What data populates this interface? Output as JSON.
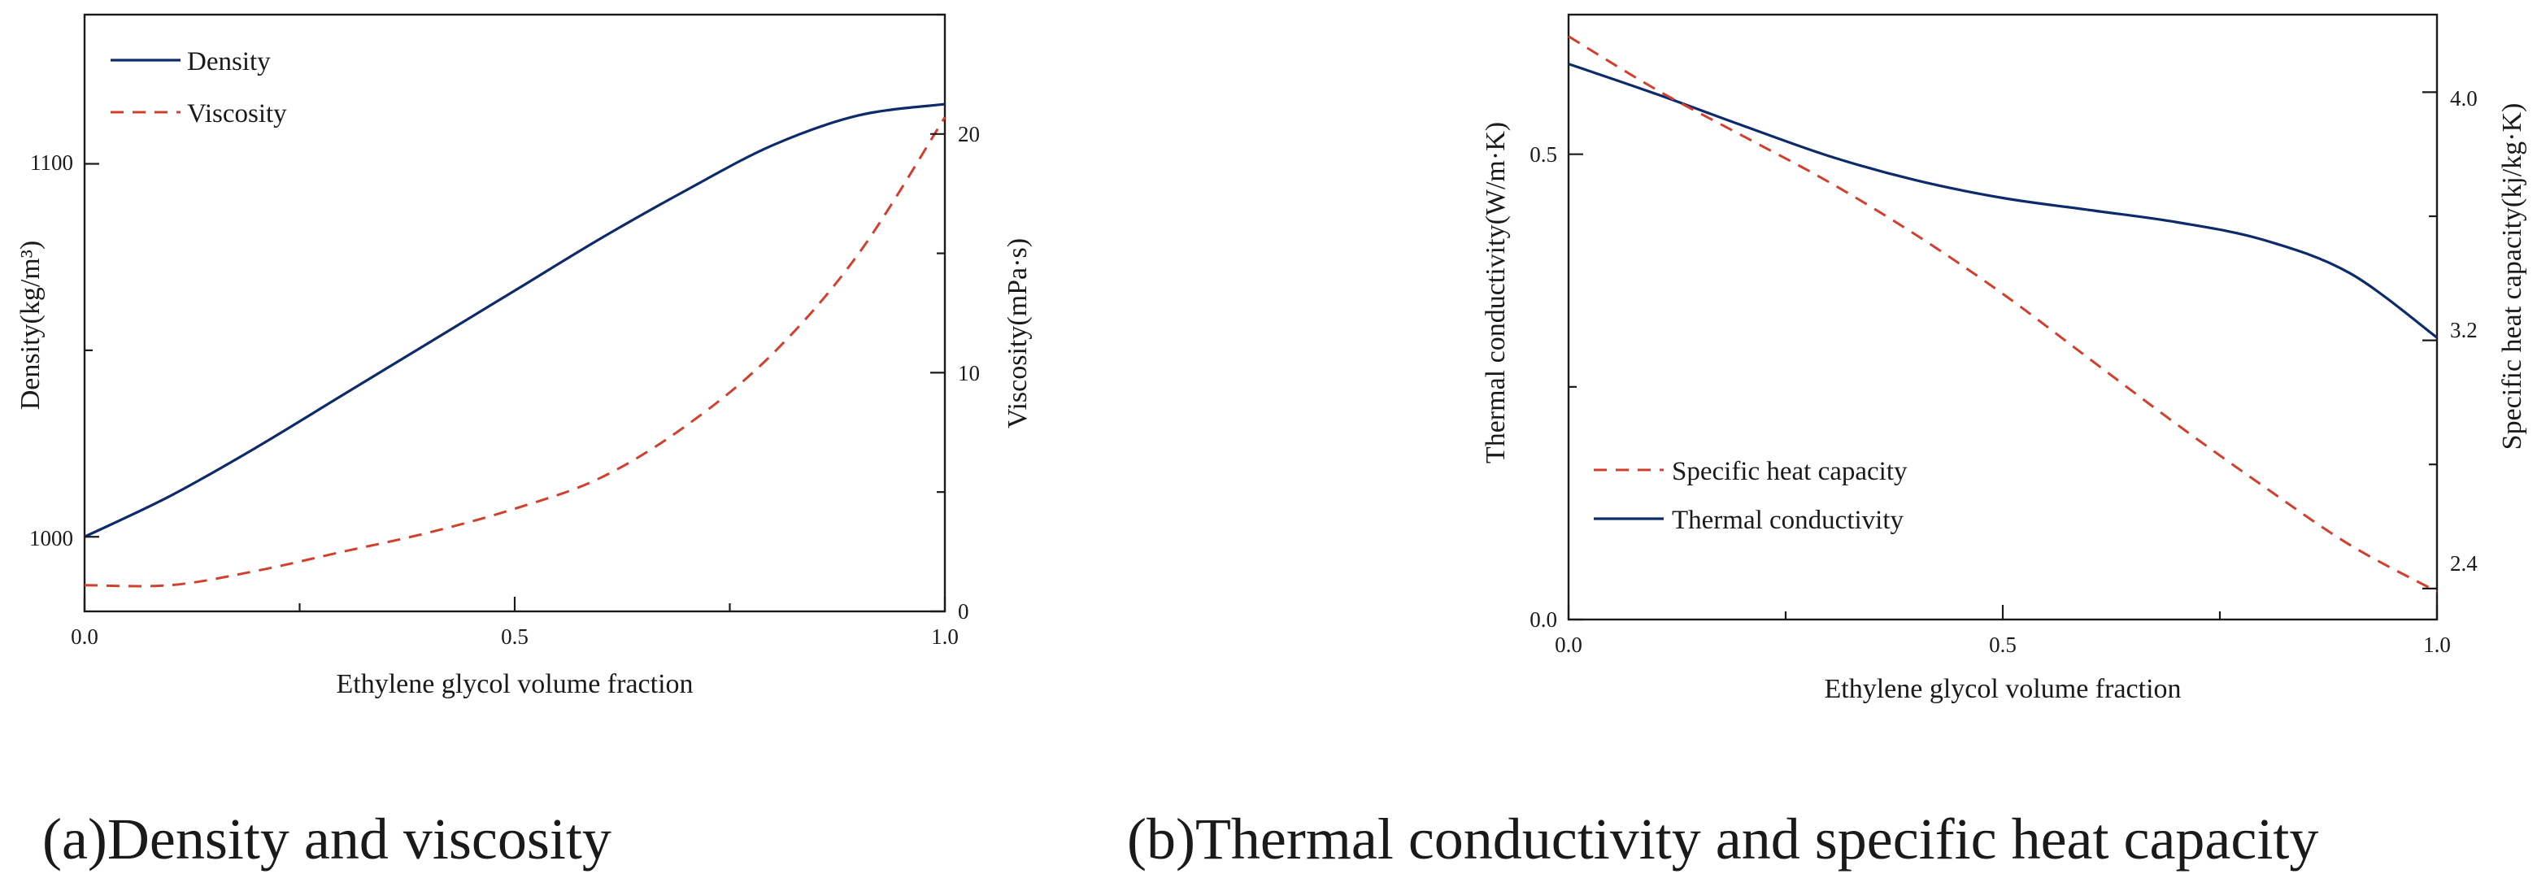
{
  "colors": {
    "navy": "#0d2a6b",
    "red": "#d1402e",
    "axis": "#1a1a1a"
  },
  "captions": [
    "(a)Density and viscosity",
    "(b)Thermal conductivity and specific heat capacity"
  ],
  "chart_data": [
    {
      "type": "line",
      "caption": "(a)Density and viscosity",
      "xlabel": "Ethylene glycol volume fraction",
      "ylabel_left": "Density(kg/m³)",
      "ylabel_right": "Viscosity(mPa·s)",
      "xlim": [
        0,
        1.0
      ],
      "ylim_left": [
        980,
        1140
      ],
      "ylim_right": [
        0,
        25
      ],
      "xticks": [
        "0.0",
        "0.5",
        "1.0"
      ],
      "yticks_left": [
        "1000",
        "1100"
      ],
      "yticks_right": [
        "0",
        "10",
        "20"
      ],
      "legend": [
        "Density",
        "Viscosity"
      ],
      "legend_position": "top-left",
      "grid": false,
      "series": [
        {
          "name": "Density",
          "axis": "left",
          "style": "solid",
          "color": "#0d2a6b",
          "x": [
            0,
            0.1,
            0.2,
            0.3,
            0.4,
            0.5,
            0.6,
            0.7,
            0.8,
            0.9,
            1.0
          ],
          "values": [
            1000,
            1011,
            1024,
            1038,
            1052,
            1066,
            1080,
            1093,
            1105,
            1113,
            1116
          ]
        },
        {
          "name": "Viscosity",
          "axis": "right",
          "style": "dashed",
          "color": "#d1402e",
          "x": [
            0,
            0.1,
            0.2,
            0.3,
            0.4,
            0.5,
            0.6,
            0.7,
            0.8,
            0.9,
            1.0
          ],
          "values": [
            1.1,
            1.1,
            1.7,
            2.5,
            3.3,
            4.3,
            5.6,
            7.8,
            10.8,
            15.0,
            20.7
          ]
        }
      ]
    },
    {
      "type": "line",
      "caption": "(b)Thermal conductivity and specific heat capacity",
      "xlabel": "Ethylene glycol volume fraction",
      "ylabel_left": "Thermal conductivity(W/m·K)",
      "ylabel_right": "Specific heat capacity(kj/kg·K)",
      "xlim": [
        0,
        1.0
      ],
      "ylim_left": [
        0,
        0.65
      ],
      "ylim_right": [
        2.3,
        4.25
      ],
      "xticks": [
        "0.0",
        "0.5",
        "1.0"
      ],
      "yticks_left": [
        "0.0",
        "0.5"
      ],
      "yticks_right": [
        "2.4",
        "3.2",
        "4.0"
      ],
      "legend": [
        "Specific heat capacity",
        "Thermal conductivity"
      ],
      "legend_position": "bottom-left",
      "grid": false,
      "series": [
        {
          "name": "Thermal conductivity",
          "axis": "left",
          "style": "solid",
          "color": "#0d2a6b",
          "x": [
            0,
            0.1,
            0.2,
            0.3,
            0.4,
            0.5,
            0.6,
            0.7,
            0.8,
            0.9,
            1.0
          ],
          "values": [
            0.597,
            0.565,
            0.531,
            0.498,
            0.472,
            0.453,
            0.44,
            0.427,
            0.408,
            0.372,
            0.303
          ]
        },
        {
          "name": "Specific heat capacity",
          "axis": "right",
          "style": "dashed",
          "color": "#d1402e",
          "x": [
            0,
            0.1,
            0.2,
            0.3,
            0.4,
            0.5,
            0.6,
            0.7,
            0.8,
            0.9,
            1.0
          ],
          "values": [
            4.18,
            4.01,
            3.86,
            3.71,
            3.54,
            3.35,
            3.14,
            2.93,
            2.73,
            2.54,
            2.39
          ]
        }
      ]
    }
  ]
}
